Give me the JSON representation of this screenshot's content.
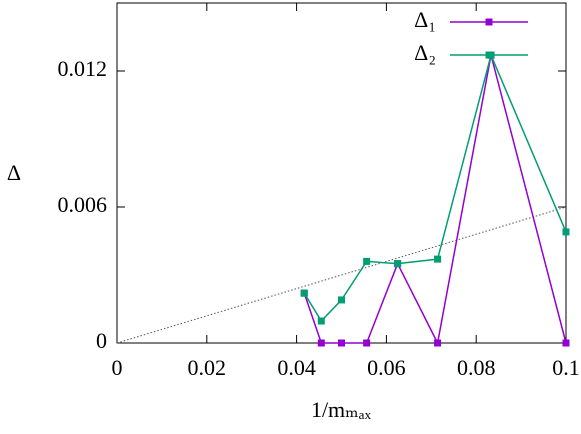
{
  "chart_data": {
    "type": "line",
    "xlabel": "1/mₘₐₓ",
    "ylabel": "Δ",
    "x": [
      0.0417,
      0.0455,
      0.05,
      0.0556,
      0.0625,
      0.0714,
      0.0833,
      0.1
    ],
    "series": [
      {
        "name": "Δ₁",
        "color": "#9400d3",
        "values": [
          0.0022,
          0,
          0,
          0,
          0.0035,
          0,
          0.0127,
          0
        ]
      },
      {
        "name": "Δ₂",
        "color": "#009e73",
        "values": [
          0.0022,
          0.00097,
          0.0019,
          0.0036,
          0.0035,
          0.0037,
          0.0127,
          0.0049
        ]
      }
    ],
    "trend": {
      "x": [
        0,
        0.1
      ],
      "values": [
        0,
        0.006
      ],
      "color": "#555555"
    },
    "xlim": [
      0,
      0.1
    ],
    "xticks": [
      0,
      0.02,
      0.04,
      0.06,
      0.08,
      0.1
    ],
    "ylim": [
      0,
      0.015
    ],
    "yticks": [
      0,
      0.006,
      0.012
    ],
    "legend": "top-right"
  }
}
